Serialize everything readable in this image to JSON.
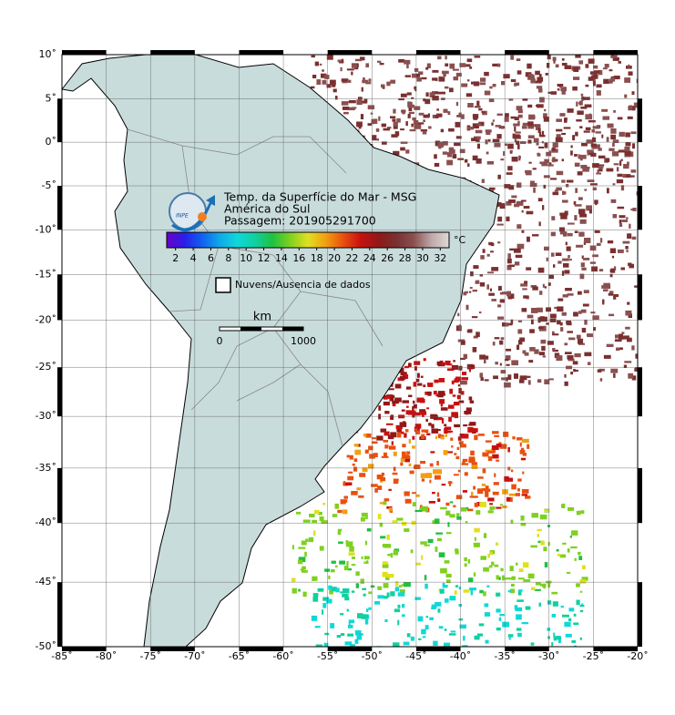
{
  "map": {
    "title_lines": [
      "Temp. da Superfície do Mar - MSG",
      "América do Sul",
      "Passagem: 201905291700"
    ],
    "logo_text": "INPE",
    "lon_ticks": [
      {
        "value": -85,
        "label": "-85˚"
      },
      {
        "value": -80,
        "label": "-80˚"
      },
      {
        "value": -75,
        "label": "-75˚"
      },
      {
        "value": -70,
        "label": "-70˚"
      },
      {
        "value": -65,
        "label": "-65˚"
      },
      {
        "value": -60,
        "label": "-60˚"
      },
      {
        "value": -55,
        "label": "-55˚"
      },
      {
        "value": -50,
        "label": "-50˚"
      },
      {
        "value": -45,
        "label": "-45˚"
      },
      {
        "value": -40,
        "label": "-40˚"
      },
      {
        "value": -35,
        "label": "-35˚"
      },
      {
        "value": -30,
        "label": "-30˚"
      },
      {
        "value": -25,
        "label": "-25˚"
      },
      {
        "value": -20,
        "label": "-20˚"
      }
    ],
    "lat_ticks": [
      {
        "value": 10,
        "label": "10˚"
      },
      {
        "value": 5,
        "label": "5˚"
      },
      {
        "value": 0,
        "label": "0˚"
      },
      {
        "value": -5,
        "label": "-5˚"
      },
      {
        "value": -10,
        "label": "-10˚"
      },
      {
        "value": -15,
        "label": "-15˚"
      },
      {
        "value": -20,
        "label": "-20˚"
      },
      {
        "value": -25,
        "label": "-25˚"
      },
      {
        "value": -30,
        "label": "-30˚"
      },
      {
        "value": -35,
        "label": "-35˚"
      },
      {
        "value": -40,
        "label": "-40˚"
      },
      {
        "value": -45,
        "label": "-45˚"
      },
      {
        "value": -50,
        "label": "-50˚"
      }
    ],
    "lonlim": [
      -85,
      -20
    ],
    "latlim": [
      10,
      -50
    ],
    "colorbar": {
      "unit": "°C",
      "clim": [
        1,
        33
      ],
      "ticks": [
        2,
        4,
        6,
        8,
        10,
        12,
        14,
        16,
        18,
        20,
        22,
        24,
        26,
        28,
        30,
        32
      ],
      "colors": [
        "#6a00c8",
        "#2a1ee8",
        "#1060f0",
        "#10a8e8",
        "#10d8d8",
        "#10d0a0",
        "#20c040",
        "#80d020",
        "#e0e020",
        "#f0a010",
        "#e85010",
        "#c81010",
        "#901818",
        "#7a3030",
        "#8a5050",
        "#c0a8a8",
        "#e0d8d8"
      ]
    },
    "legend_label": "Nuvens/Ausencia de dados",
    "scale_bar": {
      "unit": "km",
      "start_label": "0",
      "end_label": "1000"
    }
  }
}
